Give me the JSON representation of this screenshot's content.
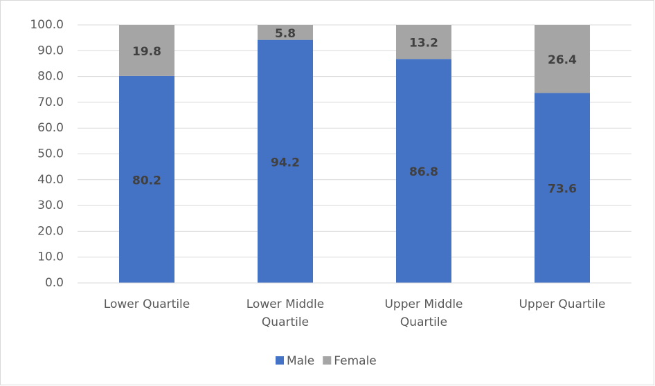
{
  "chart_data": {
    "type": "stacked_bar",
    "categories": [
      "Lower Quartile",
      "Lower Middle Quartile",
      "Upper Middle Quartile",
      "Upper Quartile"
    ],
    "series": [
      {
        "name": "Male",
        "color": "#4472c4",
        "values": [
          80.2,
          94.2,
          86.8,
          73.6
        ]
      },
      {
        "name": "Female",
        "color": "#a5a5a5",
        "values": [
          19.8,
          5.8,
          13.2,
          26.4
        ]
      }
    ],
    "ylim": [
      0,
      100
    ],
    "yticks": [
      {
        "value": 0,
        "label": "0.0"
      },
      {
        "value": 10,
        "label": "10.0"
      },
      {
        "value": 20,
        "label": "20.0"
      },
      {
        "value": 30,
        "label": "30.0"
      },
      {
        "value": 40,
        "label": "40.0"
      },
      {
        "value": 50,
        "label": "50.0"
      },
      {
        "value": 60,
        "label": "60.0"
      },
      {
        "value": 70,
        "label": "70.0"
      },
      {
        "value": 80,
        "label": "80.0"
      },
      {
        "value": 90,
        "label": "90.0"
      },
      {
        "value": 100,
        "label": "100.0"
      }
    ],
    "grid": true,
    "legend": "bottom"
  }
}
